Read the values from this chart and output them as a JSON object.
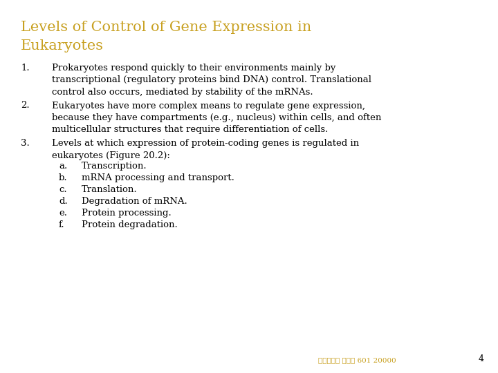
{
  "background_color": "#ffffff",
  "title_line1": "Levels of Control of Gene Expression in",
  "title_line2": "Eukaryotes",
  "title_color": "#c8a020",
  "body_color": "#000000",
  "footer_text": "台大農藝系 遙傳學 601 20000",
  "footer_color": "#c8a020",
  "page_number": "4",
  "items": [
    {
      "number": "1.",
      "text": "Prokaryotes respond quickly to their environments mainly by\ntranscriptional (regulatory proteins bind DNA) control. Translational\ncontrol also occurs, mediated by stability of the mRNAs."
    },
    {
      "number": "2.",
      "text": "Eukaryotes have more complex means to regulate gene expression,\nbecause they have compartments (e.g., nucleus) within cells, and often\nmulticellular structures that require differentiation of cells."
    },
    {
      "number": "3.",
      "text": "Levels at which expression of protein-coding genes is regulated in\neukaryotes (Figure 20.2):"
    }
  ],
  "sub_items": [
    {
      "letter": "a.",
      "text": "Transcription."
    },
    {
      "letter": "b.",
      "text": "mRNA processing and transport."
    },
    {
      "letter": "c.",
      "text": "Translation."
    },
    {
      "letter": "d.",
      "text": "Degradation of mRNA."
    },
    {
      "letter": "e.",
      "text": "Protein processing."
    },
    {
      "letter": "f.",
      "text": "Protein degradation."
    }
  ],
  "font_family": "serif",
  "title_fontsize": 15,
  "body_fontsize": 9.5,
  "sub_fontsize": 9.5,
  "footer_fontsize": 7.5,
  "page_num_fontsize": 9
}
